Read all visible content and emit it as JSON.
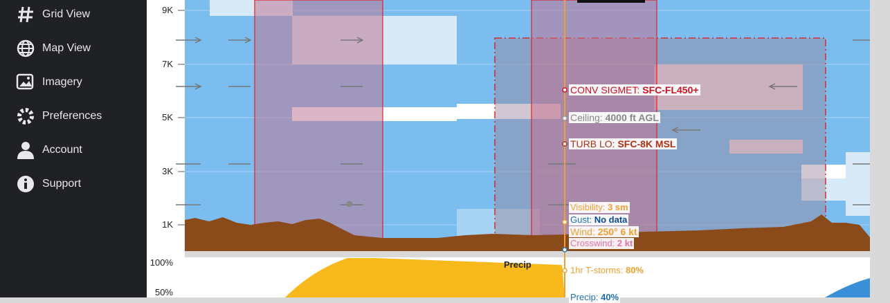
{
  "sidebar": {
    "items": [
      "Grid View",
      "Map View",
      "Imagery",
      "Preferences",
      "Account",
      "Support"
    ]
  },
  "profile": {
    "y_labels": [
      "9K",
      "7K",
      "5K",
      "3K",
      "1K"
    ],
    "readouts": [
      {
        "label": "CONV SIGMET:",
        "value": "SFC-FL450+"
      },
      {
        "label": "Ceiling:",
        "value": "4000 ft AGL"
      },
      {
        "label": "TURB LO:",
        "value": "SFC-8K MSL"
      },
      {
        "label": "Visibility:",
        "value": "3 sm"
      },
      {
        "label": "Gust:",
        "value": "No data"
      },
      {
        "label": "Wind:",
        "value": "250° 6 kt"
      },
      {
        "label": "Crosswind:",
        "value": "2 kt"
      }
    ]
  },
  "precip": {
    "title": "Precip",
    "y_labels": [
      "100%",
      "50%"
    ],
    "readouts": [
      {
        "label": "1hr T-storms:",
        "value": "80%"
      },
      {
        "label": "Precip:",
        "value": "40%"
      }
    ]
  }
}
